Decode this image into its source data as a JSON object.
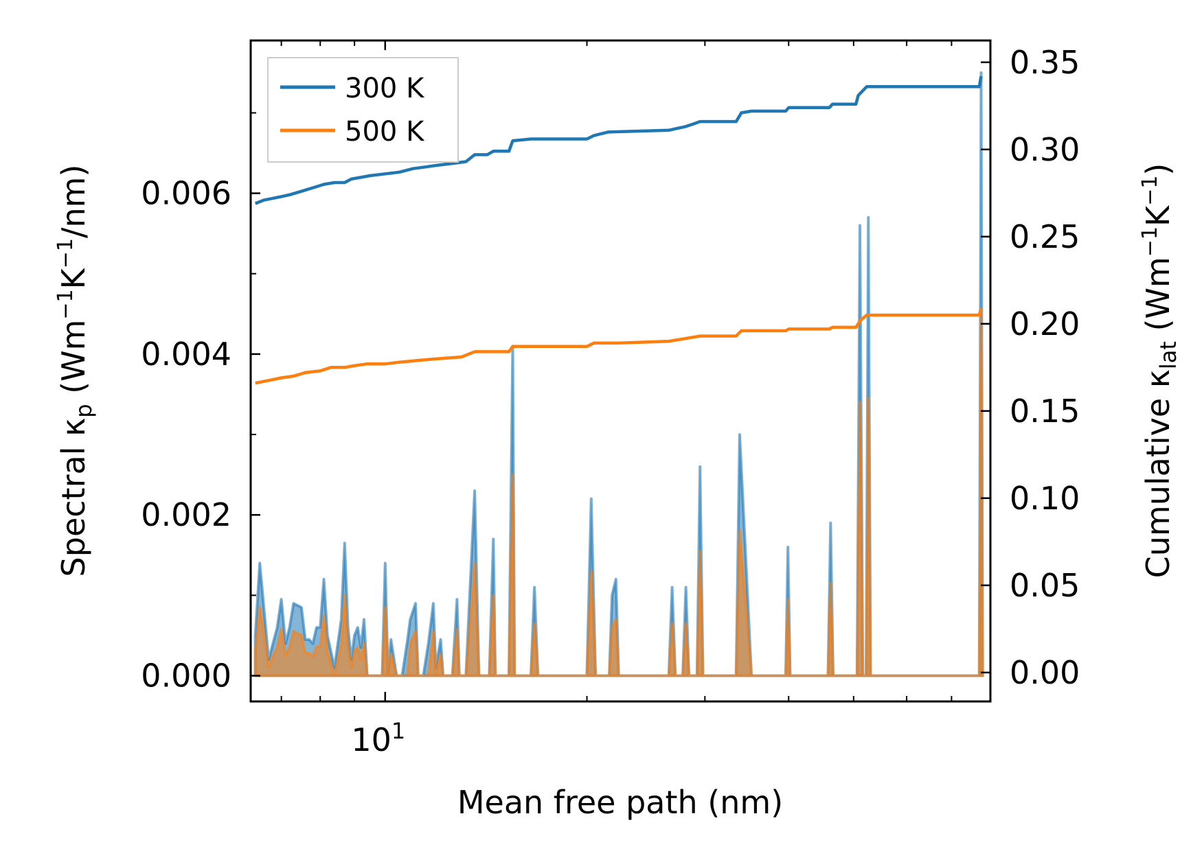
{
  "chart_data": {
    "type": "line",
    "xscale": "log",
    "xlim": [
      6.3,
      80.0
    ],
    "x_major_ticks": [
      {
        "value": 10,
        "base": "10",
        "exp": "1"
      }
    ],
    "x_minor_ticks": [
      7,
      8,
      9,
      20,
      30,
      40,
      50,
      60,
      70
    ],
    "xlabel": "Mean free path (nm)",
    "ylabel_left": {
      "main": "Spectral κ",
      "sub": "p",
      "unit_open": " (Wm",
      "sup1": "−1",
      "unit_mid": "K",
      "sup2": "−1",
      "unit_close": "/nm)"
    },
    "ylabel_right": {
      "main": "Cumulative κ",
      "sub": "lat",
      "unit_open": " (Wm",
      "sup1": "−1",
      "unit_mid": "K",
      "sup2": "−1",
      "unit_close": ")"
    },
    "ylim_left": [
      -0.00032,
      0.0079
    ],
    "ylim_right": [
      -0.0166,
      0.3625
    ],
    "yticks_left": [
      {
        "value": 0.0,
        "label": "0.000"
      },
      {
        "value": 0.002,
        "label": "0.002"
      },
      {
        "value": 0.004,
        "label": "0.004"
      },
      {
        "value": 0.006,
        "label": "0.006"
      }
    ],
    "yticks_right": [
      {
        "value": 0.0,
        "label": "0.00"
      },
      {
        "value": 0.05,
        "label": "0.05"
      },
      {
        "value": 0.1,
        "label": "0.10"
      },
      {
        "value": 0.15,
        "label": "0.15"
      },
      {
        "value": 0.2,
        "label": "0.20"
      },
      {
        "value": 0.25,
        "label": "0.25"
      },
      {
        "value": 0.3,
        "label": "0.30"
      },
      {
        "value": 0.35,
        "label": "0.35"
      }
    ],
    "legend": {
      "placement": "top-left",
      "entries": [
        "300 K",
        "500 K"
      ]
    },
    "series": [
      {
        "name": "300 K",
        "color": "#1f77b4",
        "spectral_axis": "left",
        "spectral": [
          [
            6.4,
            0.0005
          ],
          [
            6.5,
            0.0014
          ],
          [
            6.6,
            0.0008
          ],
          [
            6.7,
            0.0002
          ],
          [
            6.8,
            0.0004
          ],
          [
            6.9,
            0.0006
          ],
          [
            7.0,
            0.00095
          ],
          [
            7.1,
            0.0004
          ],
          [
            7.2,
            0.0006
          ],
          [
            7.3,
            0.0009
          ],
          [
            7.5,
            0.00085
          ],
          [
            7.6,
            0.00045
          ],
          [
            7.7,
            0.00045
          ],
          [
            7.8,
            0.0004
          ],
          [
            7.9,
            0.0006
          ],
          [
            8.0,
            0.0006
          ],
          [
            8.1,
            0.0012
          ],
          [
            8.2,
            0.0005
          ],
          [
            8.4,
            0.0001
          ],
          [
            8.6,
            0.0007
          ],
          [
            8.7,
            0.00165
          ],
          [
            8.8,
            0.0006
          ],
          [
            8.9,
            0.0002
          ],
          [
            9.0,
            0.0005
          ],
          [
            9.1,
            0.0006
          ],
          [
            9.2,
            0.00035
          ],
          [
            9.3,
            0.0007
          ],
          [
            9.4,
            0.0
          ],
          [
            9.6,
            0.0
          ],
          [
            9.9,
            0.0
          ],
          [
            10.0,
            0.0014
          ],
          [
            10.1,
            0.0
          ],
          [
            10.2,
            0.00045
          ],
          [
            10.4,
            0.0
          ],
          [
            10.6,
            0.0
          ],
          [
            10.8,
            0.00045
          ],
          [
            10.9,
            0.0007
          ],
          [
            11.1,
            0.0009
          ],
          [
            11.2,
            0.0
          ],
          [
            11.4,
            0.0
          ],
          [
            11.6,
            0.0004
          ],
          [
            11.8,
            0.0009
          ],
          [
            11.9,
            0.0001
          ],
          [
            12.1,
            0.00045
          ],
          [
            12.2,
            0.0
          ],
          [
            12.6,
            0.0
          ],
          [
            12.8,
            0.00095
          ],
          [
            12.9,
            0.0
          ],
          [
            13.2,
            0.0
          ],
          [
            13.6,
            0.0023
          ],
          [
            13.8,
            0.0
          ],
          [
            14.3,
            0.0
          ],
          [
            14.5,
            0.0017
          ],
          [
            14.6,
            0.0
          ],
          [
            15.3,
            0.0
          ],
          [
            15.5,
            0.0041
          ],
          [
            15.6,
            0.0
          ],
          [
            16.5,
            0.0
          ],
          [
            16.7,
            0.0011
          ],
          [
            16.9,
            0.0
          ],
          [
            20.0,
            0.0
          ],
          [
            20.3,
            0.0022
          ],
          [
            20.6,
            0.0
          ],
          [
            21.6,
            0.0
          ],
          [
            21.8,
            0.001
          ],
          [
            22.1,
            0.0012
          ],
          [
            22.3,
            0.0
          ],
          [
            26.5,
            0.0
          ],
          [
            26.8,
            0.0011
          ],
          [
            27.1,
            0.0
          ],
          [
            27.8,
            0.0
          ],
          [
            28.1,
            0.0011
          ],
          [
            28.4,
            0.0
          ],
          [
            29.2,
            0.0
          ],
          [
            29.5,
            0.0026
          ],
          [
            29.8,
            0.0
          ],
          [
            33.4,
            0.0
          ],
          [
            33.8,
            0.003
          ],
          [
            34.5,
            0.0015
          ],
          [
            35.2,
            0.0
          ],
          [
            39.6,
            0.0
          ],
          [
            39.9,
            0.0016
          ],
          [
            40.2,
            0.0
          ],
          [
            45.8,
            0.0
          ],
          [
            46.2,
            0.0019
          ],
          [
            46.6,
            0.0
          ],
          [
            50.6,
            0.0
          ],
          [
            51.1,
            0.0056
          ],
          [
            51.6,
            0.0
          ],
          [
            52.2,
            0.0
          ],
          [
            52.6,
            0.0057
          ],
          [
            53.0,
            0.0
          ],
          [
            77.0,
            0.0
          ],
          [
            77.5,
            0.0075
          ],
          [
            77.9,
            0.0
          ]
        ],
        "cumulative_axis": "right",
        "cumulative": [
          [
            6.4,
            0.269
          ],
          [
            6.6,
            0.271
          ],
          [
            6.8,
            0.272
          ],
          [
            7.0,
            0.273
          ],
          [
            7.2,
            0.274
          ],
          [
            7.5,
            0.276
          ],
          [
            7.8,
            0.278
          ],
          [
            8.1,
            0.28
          ],
          [
            8.4,
            0.281
          ],
          [
            8.7,
            0.281
          ],
          [
            8.9,
            0.283
          ],
          [
            9.2,
            0.284
          ],
          [
            9.5,
            0.285
          ],
          [
            10.0,
            0.286
          ],
          [
            10.5,
            0.287
          ],
          [
            11.0,
            0.289
          ],
          [
            11.5,
            0.29
          ],
          [
            12.0,
            0.291
          ],
          [
            12.6,
            0.292
          ],
          [
            13.2,
            0.293
          ],
          [
            13.6,
            0.297
          ],
          [
            14.2,
            0.297
          ],
          [
            14.5,
            0.299
          ],
          [
            15.3,
            0.299
          ],
          [
            15.5,
            0.305
          ],
          [
            16.5,
            0.306
          ],
          [
            20.0,
            0.306
          ],
          [
            20.5,
            0.308
          ],
          [
            21.5,
            0.31
          ],
          [
            26.5,
            0.311
          ],
          [
            27.2,
            0.312
          ],
          [
            28.0,
            0.313
          ],
          [
            29.0,
            0.315
          ],
          [
            29.5,
            0.316
          ],
          [
            33.4,
            0.316
          ],
          [
            34.0,
            0.321
          ],
          [
            35.2,
            0.322
          ],
          [
            39.6,
            0.322
          ],
          [
            40.0,
            0.324
          ],
          [
            46.0,
            0.324
          ],
          [
            46.5,
            0.326
          ],
          [
            50.4,
            0.326
          ],
          [
            50.8,
            0.331
          ],
          [
            51.4,
            0.333
          ],
          [
            52.3,
            0.336
          ],
          [
            77.0,
            0.336
          ],
          [
            77.5,
            0.342
          ]
        ]
      },
      {
        "name": "500 K",
        "color": "#ff7f0e",
        "spectral_axis": "left",
        "spectral": [
          [
            6.4,
            0.0003
          ],
          [
            6.5,
            0.00085
          ],
          [
            6.6,
            0.0005
          ],
          [
            6.7,
            0.0001
          ],
          [
            6.8,
            0.00025
          ],
          [
            6.9,
            0.00035
          ],
          [
            7.0,
            0.00058
          ],
          [
            7.1,
            0.00025
          ],
          [
            7.2,
            0.00035
          ],
          [
            7.3,
            0.00055
          ],
          [
            7.5,
            0.0005
          ],
          [
            7.6,
            0.00028
          ],
          [
            7.7,
            0.00028
          ],
          [
            7.8,
            0.00024
          ],
          [
            7.9,
            0.00036
          ],
          [
            8.0,
            0.00036
          ],
          [
            8.1,
            0.00075
          ],
          [
            8.2,
            0.0003
          ],
          [
            8.4,
            0.0
          ],
          [
            8.6,
            0.0004
          ],
          [
            8.7,
            0.001
          ],
          [
            8.8,
            0.00035
          ],
          [
            8.9,
            0.0001
          ],
          [
            9.0,
            0.0003
          ],
          [
            9.1,
            0.00035
          ],
          [
            9.2,
            0.0002
          ],
          [
            9.3,
            0.0004
          ],
          [
            9.4,
            0.0
          ],
          [
            9.9,
            0.0
          ],
          [
            10.0,
            0.00085
          ],
          [
            10.1,
            0.0
          ],
          [
            10.2,
            0.00027
          ],
          [
            10.4,
            0.0
          ],
          [
            10.8,
            0.0
          ],
          [
            10.9,
            0.0004
          ],
          [
            11.1,
            0.00055
          ],
          [
            11.2,
            0.0
          ],
          [
            11.6,
            0.0
          ],
          [
            11.8,
            0.00055
          ],
          [
            11.9,
            0.0
          ],
          [
            12.1,
            0.00027
          ],
          [
            12.2,
            0.0
          ],
          [
            12.6,
            0.0
          ],
          [
            12.8,
            0.00058
          ],
          [
            12.9,
            0.0
          ],
          [
            13.2,
            0.0
          ],
          [
            13.6,
            0.0014
          ],
          [
            13.8,
            0.0
          ],
          [
            14.3,
            0.0
          ],
          [
            14.5,
            0.001
          ],
          [
            14.6,
            0.0
          ],
          [
            15.3,
            0.0
          ],
          [
            15.5,
            0.0025
          ],
          [
            15.6,
            0.0
          ],
          [
            16.5,
            0.0
          ],
          [
            16.7,
            0.00065
          ],
          [
            16.9,
            0.0
          ],
          [
            20.0,
            0.0
          ],
          [
            20.3,
            0.0013
          ],
          [
            20.6,
            0.0
          ],
          [
            21.6,
            0.0
          ],
          [
            21.8,
            0.0006
          ],
          [
            22.1,
            0.0007
          ],
          [
            22.3,
            0.0
          ],
          [
            26.5,
            0.0
          ],
          [
            26.8,
            0.00065
          ],
          [
            27.1,
            0.0
          ],
          [
            27.8,
            0.0
          ],
          [
            28.1,
            0.00065
          ],
          [
            28.4,
            0.0
          ],
          [
            29.2,
            0.0
          ],
          [
            29.5,
            0.00155
          ],
          [
            29.8,
            0.0
          ],
          [
            33.4,
            0.0
          ],
          [
            33.8,
            0.0018
          ],
          [
            34.5,
            0.0009
          ],
          [
            35.2,
            0.0
          ],
          [
            39.6,
            0.0
          ],
          [
            39.9,
            0.00095
          ],
          [
            40.2,
            0.0
          ],
          [
            45.8,
            0.0
          ],
          [
            46.2,
            0.00115
          ],
          [
            46.6,
            0.0
          ],
          [
            50.6,
            0.0
          ],
          [
            51.1,
            0.0034
          ],
          [
            51.6,
            0.0
          ],
          [
            52.2,
            0.0
          ],
          [
            52.6,
            0.00345
          ],
          [
            53.0,
            0.0
          ],
          [
            77.0,
            0.0
          ],
          [
            77.5,
            0.0045
          ],
          [
            77.9,
            0.0
          ]
        ],
        "cumulative_axis": "right",
        "cumulative": [
          [
            6.4,
            0.166
          ],
          [
            6.6,
            0.167
          ],
          [
            6.8,
            0.168
          ],
          [
            7.0,
            0.169
          ],
          [
            7.3,
            0.17
          ],
          [
            7.6,
            0.172
          ],
          [
            8.0,
            0.173
          ],
          [
            8.3,
            0.175
          ],
          [
            8.7,
            0.175
          ],
          [
            9.0,
            0.176
          ],
          [
            9.4,
            0.177
          ],
          [
            10.0,
            0.177
          ],
          [
            10.5,
            0.178
          ],
          [
            11.2,
            0.179
          ],
          [
            12.0,
            0.18
          ],
          [
            13.0,
            0.181
          ],
          [
            13.6,
            0.184
          ],
          [
            15.3,
            0.184
          ],
          [
            15.5,
            0.187
          ],
          [
            17.0,
            0.187
          ],
          [
            20.0,
            0.187
          ],
          [
            20.5,
            0.189
          ],
          [
            22.3,
            0.189
          ],
          [
            26.5,
            0.19
          ],
          [
            27.5,
            0.191
          ],
          [
            29.5,
            0.193
          ],
          [
            33.4,
            0.193
          ],
          [
            34.0,
            0.196
          ],
          [
            39.6,
            0.196
          ],
          [
            40.0,
            0.197
          ],
          [
            46.0,
            0.197
          ],
          [
            46.5,
            0.198
          ],
          [
            50.4,
            0.198
          ],
          [
            51.2,
            0.202
          ],
          [
            52.3,
            0.205
          ],
          [
            77.0,
            0.205
          ],
          [
            77.5,
            0.209
          ]
        ]
      }
    ]
  }
}
